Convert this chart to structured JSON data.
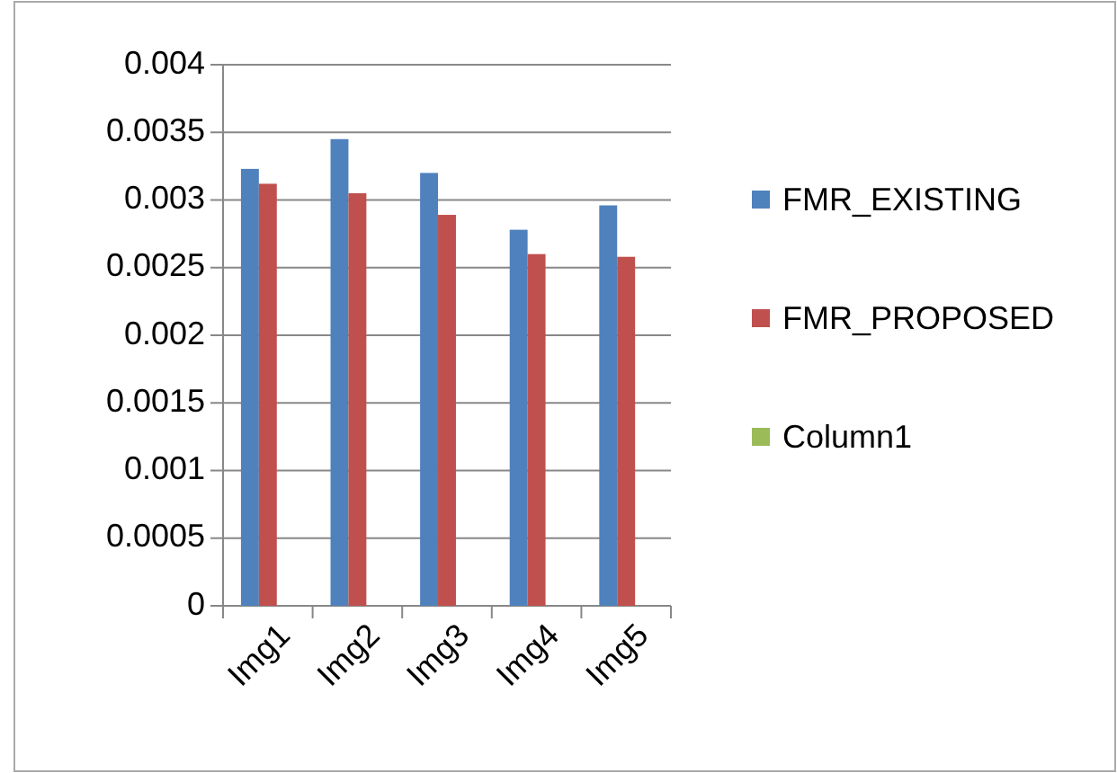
{
  "chart_data": {
    "type": "bar",
    "categories": [
      "Img1",
      "Img2",
      "Img3",
      "Img4",
      "Img5"
    ],
    "series": [
      {
        "name": "FMR_EXISTING",
        "color": "#4f81bd",
        "values": [
          0.00323,
          0.00345,
          0.0032,
          0.00278,
          0.00296
        ]
      },
      {
        "name": "FMR_PROPOSED",
        "color": "#c0504d",
        "values": [
          0.00312,
          0.00305,
          0.00289,
          0.0026,
          0.00258
        ]
      },
      {
        "name": "Column1",
        "color": "#9bbb59",
        "values": [
          null,
          null,
          null,
          null,
          null
        ]
      }
    ],
    "ylim": [
      0,
      0.004
    ],
    "yticks": [
      0,
      0.0005,
      0.001,
      0.0015,
      0.002,
      0.0025,
      0.003,
      0.0035,
      0.004
    ],
    "grid": "y",
    "legend": "right"
  }
}
